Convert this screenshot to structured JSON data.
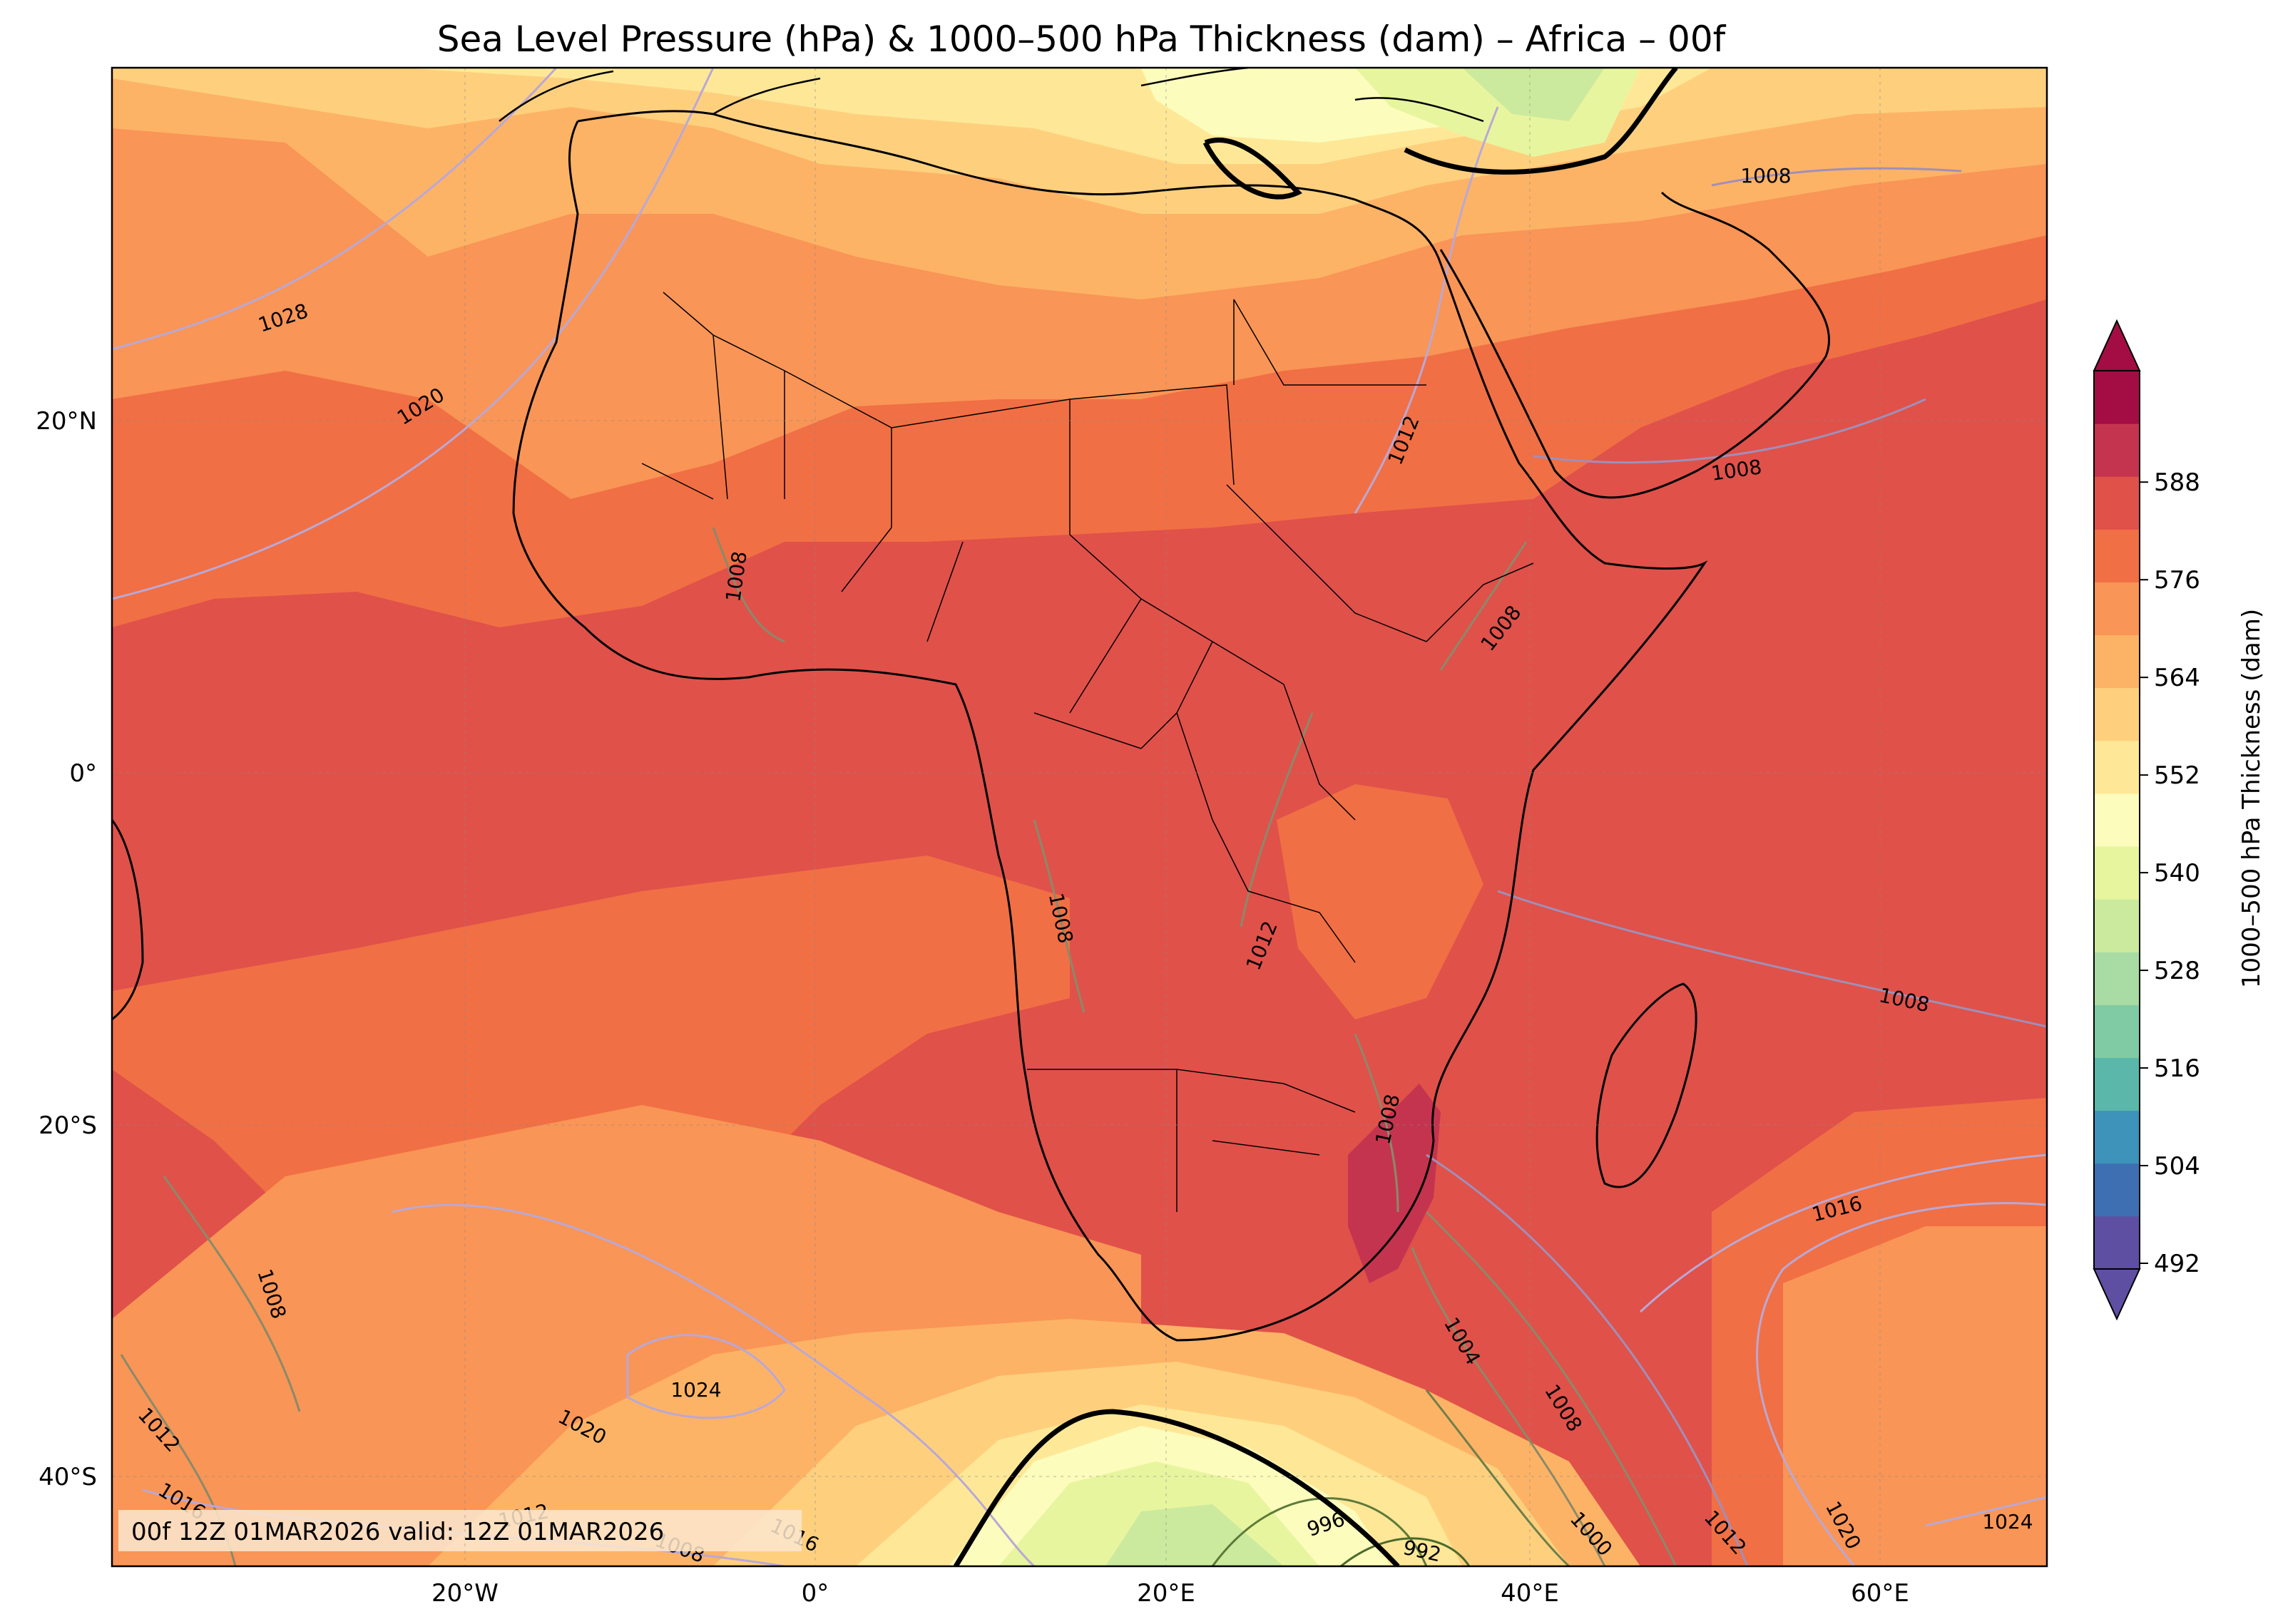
{
  "title": "Sea Level Pressure (hPa) & 1000–500 hPa Thickness (dam) – Africa – 00f",
  "map": {
    "lon_ticks": [
      "20°W",
      "0°",
      "20°E",
      "40°E",
      "60°E"
    ],
    "lat_ticks": [
      "20°N",
      "0°",
      "20°S",
      "40°S"
    ],
    "gridlines": true
  },
  "colorbar": {
    "label": "1000–500 hPa Thickness (dam)",
    "ticks": [
      "492",
      "504",
      "516",
      "528",
      "540",
      "552",
      "564",
      "576",
      "588"
    ],
    "colors": [
      "#5e4fa2",
      "#3f6fb3",
      "#3d93b9",
      "#5bb7a9",
      "#80cba4",
      "#a9dca4",
      "#ccea9e",
      "#e8f59f",
      "#fcfcbc",
      "#fee897",
      "#fed07e",
      "#fdb366",
      "#f99556",
      "#f16f44",
      "#e0514a",
      "#c5344f",
      "#a30d44"
    ]
  },
  "pressure_labels": [
    "1028",
    "1020",
    "1008",
    "1012",
    "1008",
    "1008",
    "1008",
    "1008",
    "1012",
    "1008",
    "1008",
    "1016",
    "1004",
    "1008",
    "1024",
    "1020",
    "1012",
    "1016",
    "1012",
    "1008",
    "1016",
    "1000",
    "1012",
    "1020",
    "1024",
    "996",
    "992",
    "1008"
  ],
  "footer": "00f 12Z 01MAR2026 valid: 12Z 01MAR2026"
}
